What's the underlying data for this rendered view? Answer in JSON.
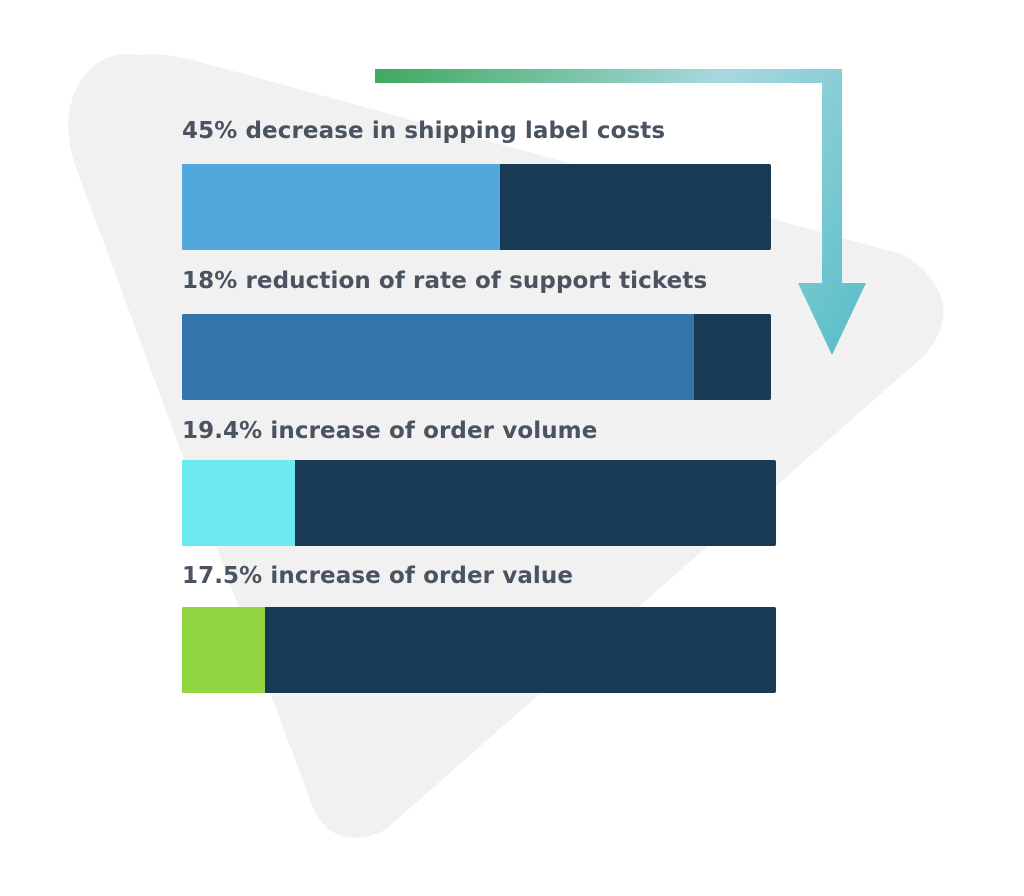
{
  "chart_data": {
    "type": "bar",
    "orientation": "horizontal",
    "title": "",
    "xlabel": "",
    "ylabel": "",
    "legend": "none",
    "grid": false,
    "bars": [
      {
        "label": "45% decrease in shipping label costs",
        "fraction": 0.54,
        "color": "#52a7dd"
      },
      {
        "label": "18% reduction of rate of support tickets",
        "fraction": 0.87,
        "color": "#3476ac"
      },
      {
        "label": "19.4% increase of order volume",
        "fraction": 0.19,
        "color": "#6deaf0"
      },
      {
        "label": "17.5% increase of order value",
        "fraction": 0.14,
        "color": "#92d543"
      }
    ],
    "track_color": "#183a55"
  },
  "decorations": {
    "background_shape": "rounded-triangle",
    "background_color": "#f1f1f1",
    "arrow_icon": "down-right-arrow",
    "arrow_gradient": [
      "#3fa95e",
      "#a8d8e0",
      "#5cbfc8"
    ]
  }
}
